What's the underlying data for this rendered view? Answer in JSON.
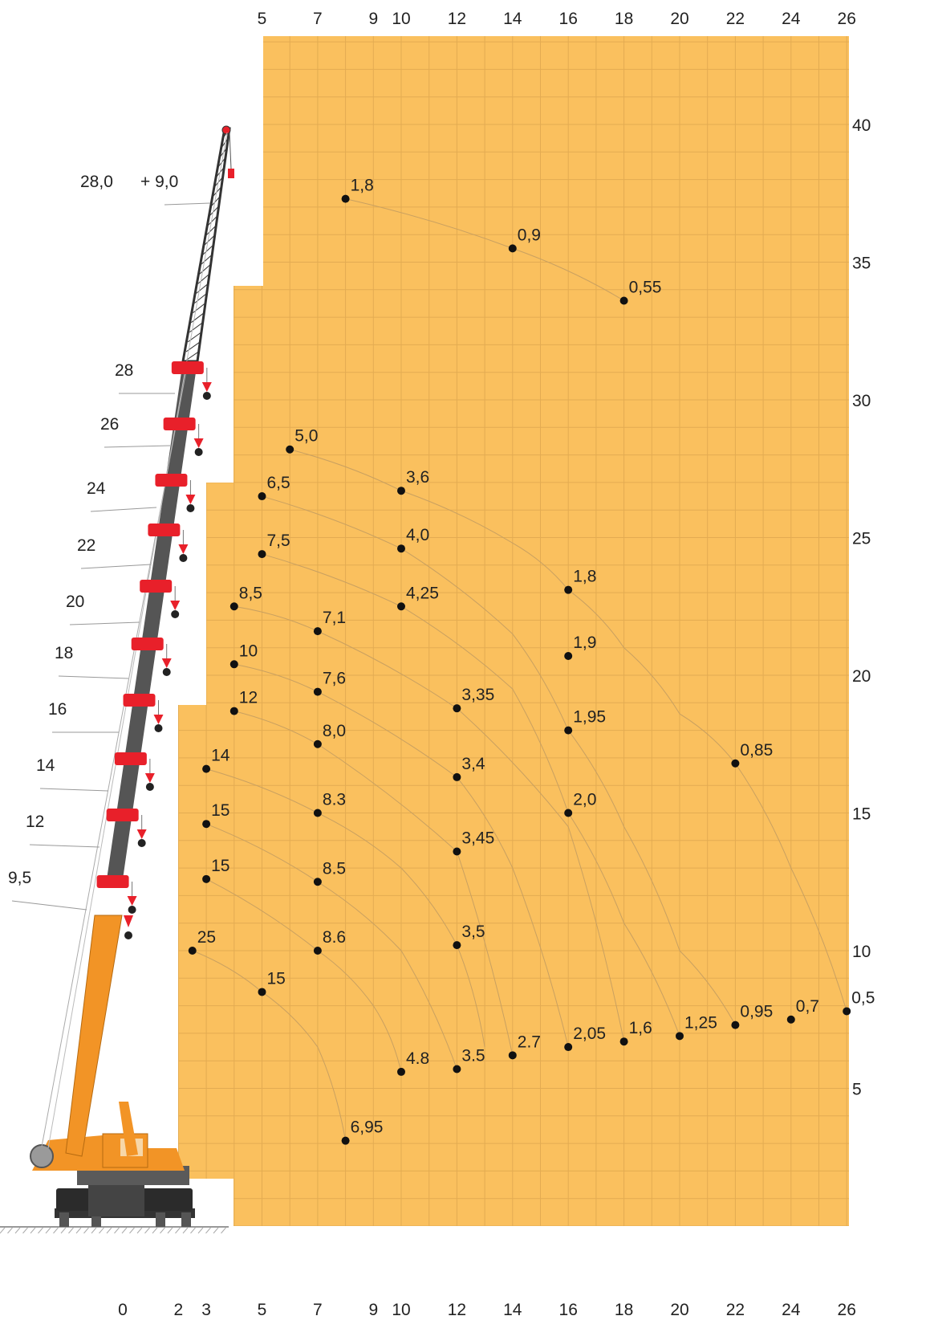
{
  "chart_data": {
    "type": "scatter",
    "title": "",
    "xlabel": "",
    "ylabel": "",
    "xlim": [
      -4.3,
      26
    ],
    "ylim": [
      0,
      42.5
    ],
    "colors": {
      "background": "#FAC05E",
      "grid": "#E3AB52",
      "point": "#111111",
      "crane_orange": "#F29426",
      "crane_red": "#E8202A",
      "boom_gray": "#555555"
    },
    "x_ticks_top": [
      "5",
      "7",
      "9",
      "10",
      "12",
      "14",
      "16",
      "18",
      "20",
      "22",
      "24",
      "26"
    ],
    "x_ticks_bottom": [
      "0",
      "2",
      "3",
      "5",
      "7",
      "9",
      "10",
      "12",
      "14",
      "16",
      "18",
      "20",
      "22",
      "24",
      "26"
    ],
    "y_ticks": [
      "40",
      "35",
      "30",
      "25",
      "20",
      "15",
      "10",
      "5"
    ],
    "boom_lengths": [
      "28,0",
      "+ 9,0",
      "28",
      "26",
      "24",
      "22",
      "20",
      "18",
      "16",
      "14",
      "12",
      "9,5"
    ],
    "points": [
      {
        "x": 8,
        "y": 37.3,
        "label": "1,8"
      },
      {
        "x": 14,
        "y": 35.5,
        "label": "0,9"
      },
      {
        "x": 18,
        "y": 33.6,
        "label": "0,55"
      },
      {
        "x": 6,
        "y": 28.2,
        "label": "5,0"
      },
      {
        "x": 5,
        "y": 26.5,
        "label": "6,5"
      },
      {
        "x": 10,
        "y": 26.7,
        "label": "3,6"
      },
      {
        "x": 5,
        "y": 24.4,
        "label": "7,5"
      },
      {
        "x": 10,
        "y": 24.6,
        "label": "4,0"
      },
      {
        "x": 16,
        "y": 23.1,
        "label": "1,8"
      },
      {
        "x": 4,
        "y": 22.5,
        "label": "8,5"
      },
      {
        "x": 7,
        "y": 21.6,
        "label": "7,1"
      },
      {
        "x": 10,
        "y": 22.5,
        "label": "4,25"
      },
      {
        "x": 16,
        "y": 20.7,
        "label": "1,9"
      },
      {
        "x": 4,
        "y": 20.4,
        "label": "10"
      },
      {
        "x": 7,
        "y": 19.4,
        "label": "7,6"
      },
      {
        "x": 12,
        "y": 18.8,
        "label": "3,35"
      },
      {
        "x": 4,
        "y": 18.7,
        "label": "12"
      },
      {
        "x": 7,
        "y": 17.5,
        "label": "8,0"
      },
      {
        "x": 16,
        "y": 18.0,
        "label": "1,95"
      },
      {
        "x": 22,
        "y": 16.8,
        "label": "0,85"
      },
      {
        "x": 3,
        "y": 16.6,
        "label": "14"
      },
      {
        "x": 12,
        "y": 16.3,
        "label": "3,4"
      },
      {
        "x": 3,
        "y": 14.6,
        "label": "15"
      },
      {
        "x": 7,
        "y": 15.0,
        "label": "8.3"
      },
      {
        "x": 16,
        "y": 15.0,
        "label": "2,0"
      },
      {
        "x": 12,
        "y": 13.6,
        "label": "3,45"
      },
      {
        "x": 3,
        "y": 12.6,
        "label": "15"
      },
      {
        "x": 7,
        "y": 12.5,
        "label": "8.5"
      },
      {
        "x": 2.5,
        "y": 10.0,
        "label": "25"
      },
      {
        "x": 7,
        "y": 10.0,
        "label": "8.6"
      },
      {
        "x": 12,
        "y": 10.2,
        "label": "3,5"
      },
      {
        "x": 5,
        "y": 8.5,
        "label": "15"
      },
      {
        "x": 26,
        "y": 7.8,
        "label": "0,5"
      },
      {
        "x": 24,
        "y": 7.5,
        "label": "0,7"
      },
      {
        "x": 22,
        "y": 7.3,
        "label": "0,95"
      },
      {
        "x": 20,
        "y": 6.9,
        "label": "1,25"
      },
      {
        "x": 18,
        "y": 6.7,
        "label": "1,6"
      },
      {
        "x": 16,
        "y": 6.5,
        "label": "2,05"
      },
      {
        "x": 14,
        "y": 6.2,
        "label": "2.7"
      },
      {
        "x": 12,
        "y": 5.7,
        "label": "3.5"
      },
      {
        "x": 10,
        "y": 5.6,
        "label": "4.8"
      },
      {
        "x": 8,
        "y": 3.1,
        "label": "6,95"
      }
    ]
  }
}
